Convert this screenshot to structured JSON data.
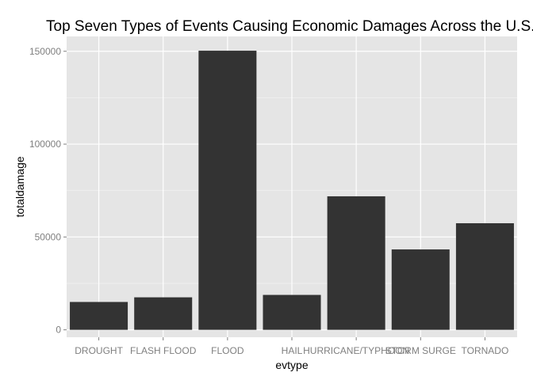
{
  "chart_data": {
    "type": "bar",
    "title": "Top Seven Types of Events Causing Economic Damages Across the U.S.",
    "xlabel": "evtype",
    "ylabel": "totaldamage",
    "categories": [
      "DROUGHT",
      "FLASH FLOOD",
      "FLOOD",
      "HAIL",
      "HURRICANE/TYPHOON",
      "STORM SURGE",
      "TORNADO"
    ],
    "values": [
      15000,
      17500,
      150300,
      18800,
      71900,
      43300,
      57400
    ],
    "ylim": [
      -4000,
      158000
    ],
    "yticks": [
      0,
      50000,
      100000,
      150000
    ],
    "ytick_labels": [
      "0",
      "50000",
      "100000",
      "150000"
    ],
    "grid": true,
    "legend": "none",
    "colors": {
      "bar": "#333333",
      "panel": "#e5e5e5",
      "grid_major": "#ffffff",
      "grid_minor": "#f2f2f2",
      "tick_text": "#7f7f7f"
    }
  }
}
